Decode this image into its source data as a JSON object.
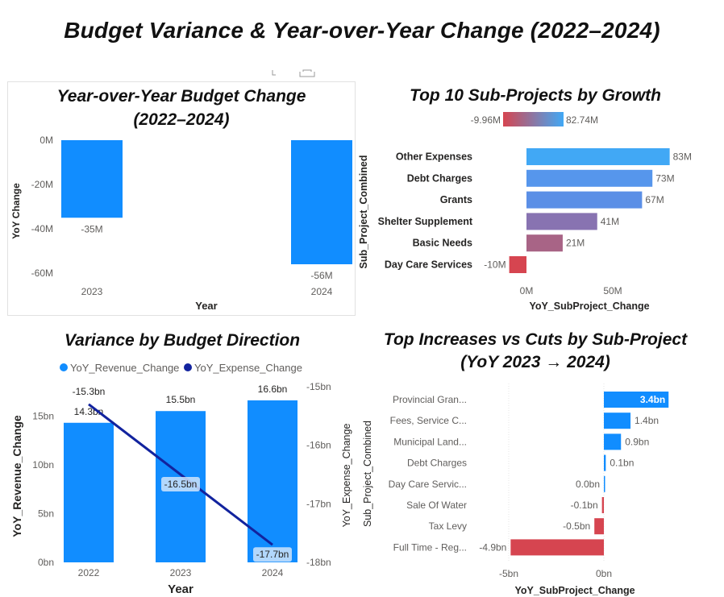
{
  "dashboard": {
    "title": "Budget Variance & Year-over-Year Change (2022–2024)"
  },
  "panels": {
    "yoy": {
      "title_line1": "Year-over-Year Budget Change",
      "title_line2": "(2022–2024)"
    },
    "top10": {
      "title": "Top 10 Sub-Projects by Growth"
    },
    "direction": {
      "title": "Variance by Budget Direction"
    },
    "increases": {
      "title_line1": "Top Increases vs Cuts by Sub-Project",
      "title_line2": "(YoY 2023 → 2024)"
    }
  },
  "colors": {
    "primary_blue": "#118dff",
    "dark_navy": "#12239e",
    "negative_red": "#d64550",
    "positive_blue": "#118dff"
  },
  "chart_data": [
    {
      "id": "yoy",
      "type": "bar",
      "categories": [
        "2023",
        "2024"
      ],
      "values": [
        -35,
        -56
      ],
      "data_labels": [
        "-35M",
        "-56M"
      ],
      "xlabel": "Year",
      "ylabel": "YoY Change",
      "yticks": [
        "0M",
        "-20M",
        "-40M",
        "-60M"
      ],
      "ytick_values": [
        0,
        -20,
        -40,
        -60
      ],
      "ylim": [
        -64,
        0
      ],
      "units": "M"
    },
    {
      "id": "top10",
      "type": "bar",
      "orientation": "horizontal",
      "categories": [
        "Other Expenses",
        "Debt Charges",
        "Grants",
        "Shelter Supplement",
        "Basic Needs",
        "Day Care Services"
      ],
      "values": [
        83,
        73,
        67,
        41,
        21,
        -10
      ],
      "data_labels": [
        "83M",
        "73M",
        "67M",
        "41M",
        "21M",
        "-10M"
      ],
      "colors": [
        "#41a8f5",
        "#5696ec",
        "#5b8fe6",
        "#8873b1",
        "#a86486",
        "#d64550"
      ],
      "xlabel": "YoY_SubProject_Change",
      "ylabel": "Sub_Project_Combined",
      "xticks": [
        "0M",
        "50M"
      ],
      "xtick_values": [
        0,
        50
      ],
      "xlim": [
        -20,
        85
      ],
      "legend_gradient": {
        "min_label": "-9.96M",
        "max_label": "82.74M",
        "min_color": "#d64550",
        "max_color": "#41a8f5"
      }
    },
    {
      "id": "direction",
      "type": "bar",
      "categories": [
        "2022",
        "2023",
        "2024"
      ],
      "series": [
        {
          "name": "YoY_Revenue_Change",
          "kind": "bar",
          "axis": "left",
          "values": [
            14.3,
            15.5,
            16.6
          ],
          "labels": [
            "14.3bn",
            "15.5bn",
            "16.6bn"
          ],
          "color": "#118dff"
        },
        {
          "name": "YoY_Expense_Change",
          "kind": "line",
          "axis": "right",
          "values": [
            -15.3,
            -16.5,
            -17.7
          ],
          "labels": [
            "-15.3bn",
            "-16.5bn",
            "-17.7bn"
          ],
          "color": "#12239e"
        }
      ],
      "xlabel": "Year",
      "ylabel": "YoY_Revenue_Change",
      "ylabel_right": "YoY_Expense_Change",
      "yticks": [
        "0bn",
        "5bn",
        "10bn",
        "15bn"
      ],
      "ytick_values": [
        0,
        5,
        10,
        15
      ],
      "ylim": [
        0,
        17.5
      ],
      "yticks_right": [
        "-15bn",
        "-16bn",
        "-17bn",
        "-18bn"
      ],
      "ytick_values_right": [
        -15,
        -16,
        -17,
        -18
      ],
      "ylim_right": [
        -18,
        -15
      ],
      "legend_position": "top"
    },
    {
      "id": "increases",
      "type": "bar",
      "orientation": "horizontal",
      "categories": [
        "Provincial Gran...",
        "Fees, Service C...",
        "Municipal Land...",
        "Debt Charges",
        "Day Care Servic...",
        "Sale Of Water",
        "Tax Levy",
        "Full Time - Reg..."
      ],
      "values": [
        3.4,
        1.4,
        0.9,
        0.1,
        0.0,
        -0.1,
        -0.5,
        -4.9
      ],
      "data_labels": [
        "3.4bn",
        "1.4bn",
        "0.9bn",
        "0.1bn",
        "0.0bn",
        "-0.1bn",
        "-0.5bn",
        "-4.9bn"
      ],
      "xlabel": "YoY_SubProject_Change",
      "ylabel": "Sub_Project_Combined",
      "xticks": [
        "-5bn",
        "0bn"
      ],
      "xtick_values": [
        -5,
        0
      ],
      "xlim": [
        -5,
        3.6
      ]
    }
  ]
}
